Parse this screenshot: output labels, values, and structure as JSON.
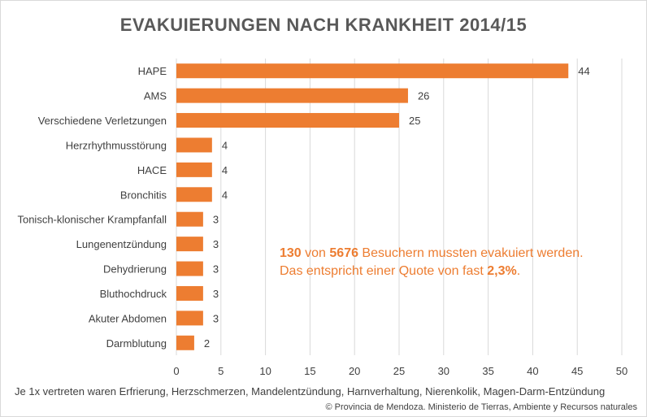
{
  "chart_data": {
    "type": "bar",
    "orientation": "horizontal",
    "title": "EVAKUIERUNGEN NACH KRANKHEIT 2014/15",
    "categories": [
      "HAPE",
      "AMS",
      "Verschiedene Verletzungen",
      "Herzrhythmusstörung",
      "HACE",
      "Bronchitis",
      "Tonisch-klonischer Krampfanfall",
      "Lungenentzündung",
      "Dehydrierung",
      "Bluthochdruck",
      "Akuter Abdomen",
      "Darmblutung"
    ],
    "values": [
      44,
      26,
      25,
      4,
      4,
      4,
      3,
      3,
      3,
      3,
      3,
      2
    ],
    "xlim": [
      0,
      50
    ],
    "xticks": [
      0,
      5,
      10,
      15,
      20,
      25,
      30,
      35,
      40,
      45,
      50
    ],
    "grid": true,
    "bar_color": "#ed7d31"
  },
  "annotation": {
    "count": "130",
    "text_1": " von ",
    "total": "5676",
    "text_2": " Besuchern mussten evakuiert werden.",
    "text_3": "Das entspricht einer Quote von fast ",
    "rate": "2,3%",
    "text_4": "."
  },
  "footnote": "Je 1x vertreten waren Erfrierung, Herzschmerzen, Mandelentzündung, Harnverhaltung, Nierenkolik, Magen-Darm-Entzündung",
  "source": "© Provincia de Mendoza. Ministerio de Tierras, Ambiente y Recursos naturales"
}
